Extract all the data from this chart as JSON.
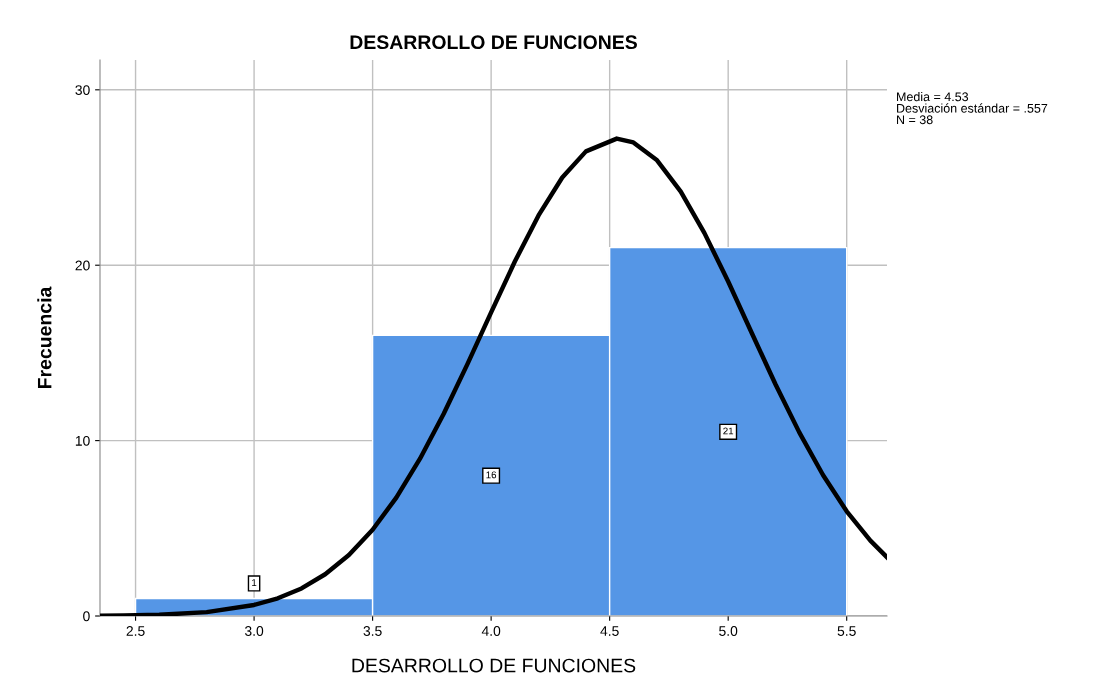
{
  "chart_data": {
    "type": "histogram",
    "title": "DESARROLLO DE FUNCIONES",
    "xlabel": "DESARROLLO DE FUNCIONES",
    "ylabel": "Frecuencia",
    "bins": [
      2.5,
      3.5,
      4.5,
      5.5
    ],
    "values": [
      1,
      16,
      21
    ],
    "color": "#5596e6",
    "value_labels": [
      "1",
      "16",
      "21"
    ],
    "series": [
      {
        "type": "line",
        "color": "#000000",
        "x": [
          2.35,
          2.45,
          2.6,
          2.8,
          3.0,
          3.1,
          3.2,
          3.3,
          3.4,
          3.5,
          3.6,
          3.7,
          3.8,
          3.9,
          4.0,
          4.1,
          4.2,
          4.3,
          4.4,
          4.53,
          4.6,
          4.7,
          4.8,
          4.9,
          5.0,
          5.1,
          5.2,
          5.3,
          5.4,
          5.5,
          5.6,
          5.67
        ],
        "values": [
          0.01,
          0.03,
          0.07,
          0.22,
          0.63,
          1.01,
          1.57,
          2.38,
          3.48,
          4.92,
          6.75,
          8.97,
          11.53,
          14.36,
          17.31,
          20.21,
          22.84,
          25.0,
          26.49,
          27.22,
          27.0,
          25.98,
          24.2,
          21.83,
          19.07,
          16.12,
          13.2,
          10.47,
          8.04,
          5.97,
          4.3,
          3.35
        ]
      }
    ],
    "xlim": [
      2.35,
      5.67
    ],
    "ylim": [
      0,
      31.7
    ],
    "xticks": [
      2.5,
      {
        "value": 3.0,
        "label": "3.0"
      },
      3.5,
      {
        "value": 4.0,
        "label": "4.0"
      },
      4.5,
      {
        "value": 5.0,
        "label": "5.0"
      },
      5.5
    ],
    "yticks": [
      0,
      10,
      20,
      30
    ],
    "grid": true,
    "annotations": [
      "Media = 4.53",
      "Desviación estándar = .557",
      "N = 38"
    ]
  }
}
